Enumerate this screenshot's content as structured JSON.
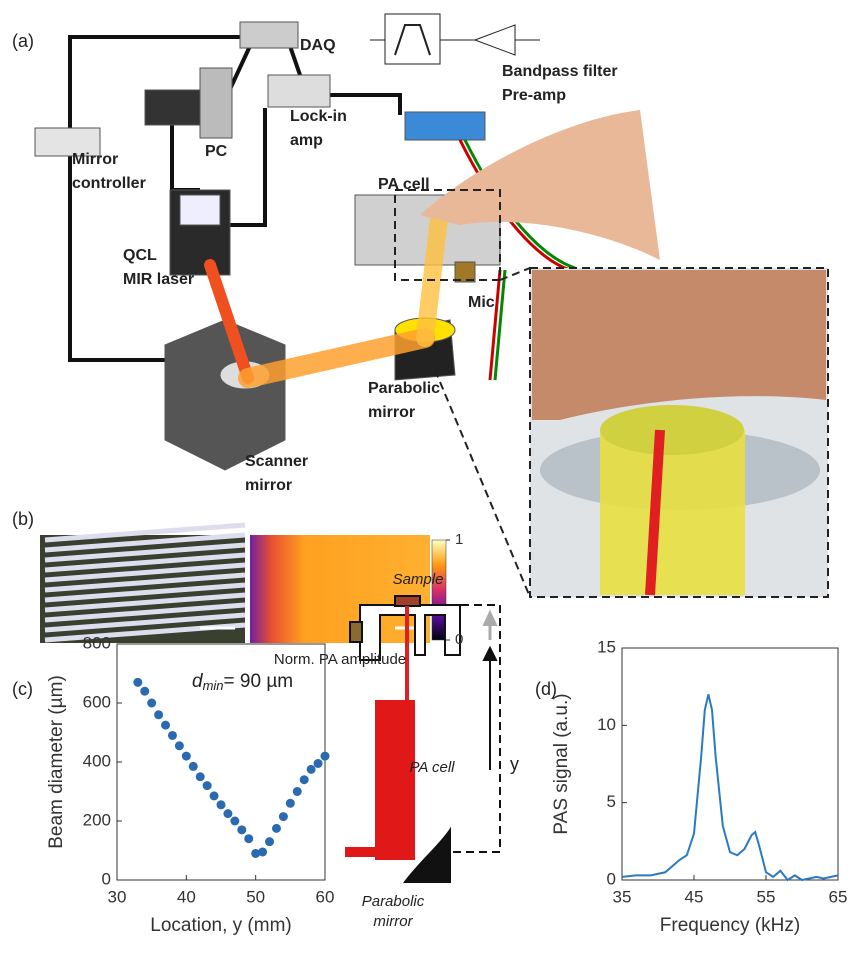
{
  "panels": [
    "(a)",
    "(b)",
    "(c)",
    "(d)"
  ],
  "setup_labels": [
    [
      "DAQ"
    ],
    [
      "Bandpass filter",
      "Pre-amp"
    ],
    [
      "PC"
    ],
    [
      "Lock-in",
      "amp"
    ],
    [
      "Mirror",
      "controller"
    ],
    [
      "PA cell"
    ],
    [
      "QCL",
      "MIR laser"
    ],
    [
      "Mic"
    ],
    [
      "Parabolic",
      "mirror"
    ],
    [
      "Scanner",
      "mirror"
    ]
  ],
  "colorbar": {
    "ticks": [
      0,
      1
    ],
    "label": "Norm. PA amplitude"
  },
  "schematic_labels": {
    "sample": "Sample",
    "pa_cell": "PA cell",
    "y": "y",
    "mirror": [
      "Parabolic",
      "mirror"
    ]
  },
  "chart_data": [
    {
      "type": "scatter",
      "xlabel": "Location, y (mm)",
      "ylabel": "Beam diameter (µm)",
      "annotation": {
        "symbol": "d",
        "subscript": "min",
        "text": "= 90 µm"
      },
      "x": [
        33,
        34,
        35,
        36,
        37,
        38,
        39,
        40,
        41,
        42,
        43,
        44,
        45,
        46,
        47,
        48,
        49,
        50,
        51,
        52,
        53,
        54,
        55,
        56,
        57,
        58,
        59,
        60
      ],
      "values": [
        670,
        640,
        600,
        560,
        525,
        490,
        455,
        420,
        385,
        350,
        320,
        285,
        255,
        225,
        200,
        170,
        140,
        90,
        95,
        130,
        175,
        215,
        260,
        300,
        340,
        375,
        395,
        420
      ],
      "color": "#2a6ab0",
      "xlim": [
        30,
        60
      ],
      "xticks": [
        30,
        40,
        50,
        60
      ],
      "ylim": [
        0,
        800
      ],
      "yticks": [
        0,
        200,
        400,
        600,
        800
      ]
    },
    {
      "type": "line",
      "xlabel": "Frequency (kHz)",
      "ylabel": "PAS signal (a.u.)",
      "x": [
        35,
        37,
        39,
        41,
        42,
        43,
        44,
        45,
        46,
        46.5,
        47,
        47.5,
        48,
        49,
        50,
        51,
        52,
        53,
        53.5,
        54,
        55,
        56,
        57,
        58,
        59,
        60,
        62,
        63,
        65
      ],
      "values": [
        0.2,
        0.3,
        0.3,
        0.5,
        0.9,
        1.3,
        1.6,
        3,
        8,
        11,
        12,
        11,
        8,
        3.5,
        1.8,
        1.6,
        2,
        2.9,
        3.1,
        2.3,
        0.5,
        0.2,
        0.6,
        0,
        0.3,
        0,
        0.2,
        0.1,
        0.3
      ],
      "color": "#2a7ac0",
      "xlim": [
        35,
        65
      ],
      "xticks": [
        35,
        45,
        55,
        65
      ],
      "ylim": [
        0,
        15
      ],
      "yticks": [
        0,
        5,
        10,
        15
      ]
    }
  ]
}
